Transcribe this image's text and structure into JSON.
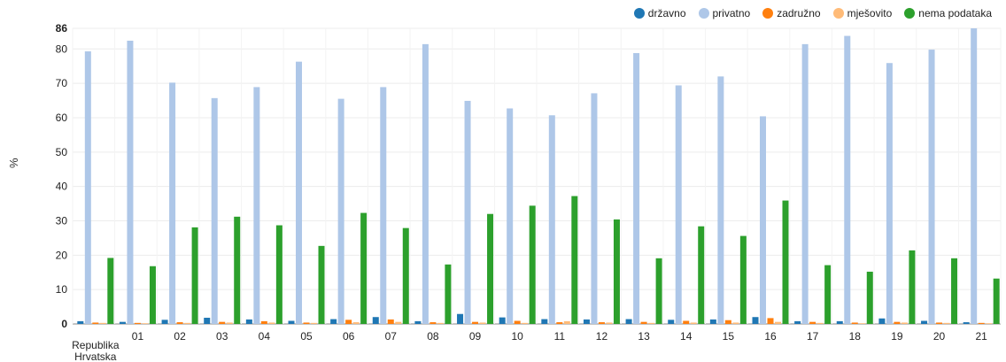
{
  "chart_data": {
    "type": "bar",
    "ylabel": "%",
    "ylim": [
      0,
      86
    ],
    "yticks": [
      0,
      10,
      20,
      30,
      40,
      50,
      60,
      70,
      80,
      86
    ],
    "grid": true,
    "legend": "top-right",
    "categories": [
      "Republika Hrvatska",
      "01",
      "02",
      "03",
      "04",
      "05",
      "06",
      "07",
      "08",
      "09",
      "10",
      "11",
      "12",
      "13",
      "14",
      "15",
      "16",
      "17",
      "18",
      "19",
      "20",
      "21"
    ],
    "series": [
      {
        "name": "državno",
        "color": "#1f77b4",
        "values": [
          0.8,
          0.6,
          1.2,
          1.8,
          1.3,
          0.9,
          1.4,
          2.0,
          0.8,
          2.9,
          1.9,
          1.4,
          1.3,
          1.4,
          1.2,
          1.3,
          2.0,
          0.8,
          0.8,
          1.6,
          0.9,
          0.5
        ]
      },
      {
        "name": "privatno",
        "color": "#aec7e8",
        "values": [
          79.3,
          82.4,
          70.2,
          65.7,
          68.9,
          76.3,
          65.5,
          68.9,
          81.4,
          64.9,
          62.7,
          60.7,
          67.1,
          78.8,
          69.4,
          72.0,
          60.4,
          81.4,
          83.8,
          75.9,
          79.8,
          86.3
        ]
      },
      {
        "name": "zadružno",
        "color": "#ff7f0e",
        "values": [
          0.4,
          0.3,
          0.5,
          0.6,
          0.8,
          0.4,
          1.2,
          1.3,
          0.5,
          0.6,
          0.9,
          0.5,
          0.5,
          0.6,
          0.9,
          1.1,
          1.7,
          0.6,
          0.4,
          0.6,
          0.4,
          0.3
        ]
      },
      {
        "name": "mješovito",
        "color": "#ffbb78",
        "values": [
          0.3,
          0.2,
          0.3,
          0.4,
          0.4,
          0.3,
          0.5,
          0.6,
          0.3,
          0.4,
          0.3,
          0.8,
          0.4,
          0.3,
          0.4,
          0.4,
          0.6,
          0.3,
          0.2,
          0.4,
          0.3,
          0.2
        ]
      },
      {
        "name": "nema podataka",
        "color": "#2ca02c",
        "values": [
          19.2,
          16.8,
          28.1,
          31.2,
          28.7,
          22.7,
          32.3,
          27.9,
          17.3,
          32.0,
          34.4,
          37.2,
          30.4,
          19.1,
          28.4,
          25.6,
          35.9,
          17.1,
          15.2,
          21.4,
          19.1,
          13.2
        ]
      }
    ]
  }
}
